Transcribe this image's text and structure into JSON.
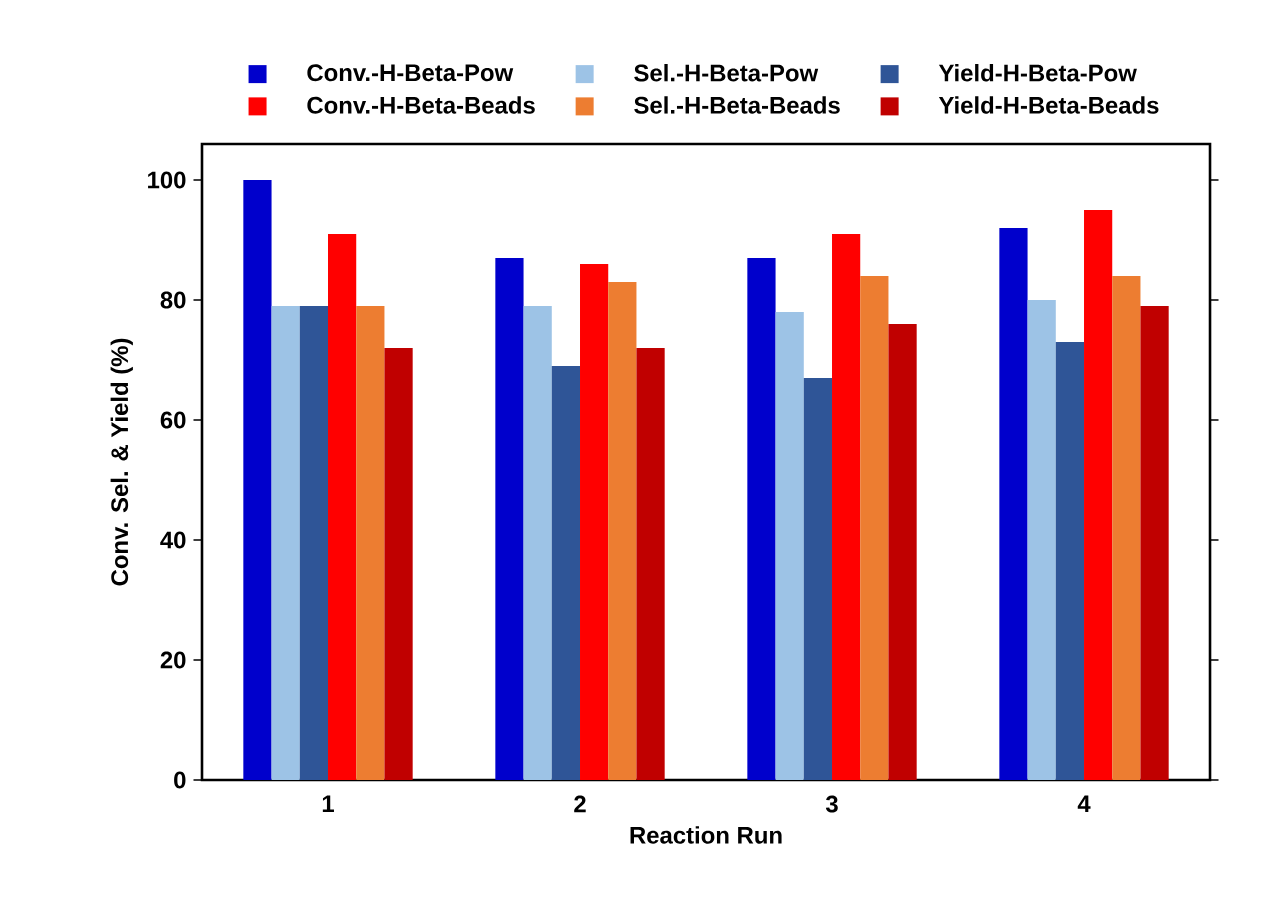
{
  "chart_data": {
    "type": "bar",
    "xlabel": "Reaction Run",
    "ylabel": "Conv. Sel. & Yield (%)",
    "categories": [
      "1",
      "2",
      "3",
      "4"
    ],
    "series": [
      {
        "name": "Conv.-H-Beta-Pow",
        "color": "#0000cc",
        "values": [
          100,
          87,
          87,
          92
        ]
      },
      {
        "name": "Sel.-H-Beta-Pow",
        "color": "#9dc3e6",
        "values": [
          79,
          79,
          78,
          80
        ]
      },
      {
        "name": "Yield-H-Beta-Pow",
        "color": "#2f5597",
        "values": [
          79,
          69,
          67,
          73
        ]
      },
      {
        "name": "Conv.-H-Beta-Beads",
        "color": "#ff0000",
        "values": [
          91,
          86,
          91,
          95
        ]
      },
      {
        "name": "Sel.-H-Beta-Beads",
        "color": "#ed7d31",
        "values": [
          79,
          83,
          84,
          84
        ]
      },
      {
        "name": "Yield-H-Beta-Beads",
        "color": "#c00000",
        "values": [
          72,
          72,
          76,
          79
        ]
      }
    ],
    "ylim": [
      0,
      106
    ],
    "yticks": [
      0,
      20,
      40,
      60,
      80,
      100
    ],
    "grid": false,
    "legend": "top"
  }
}
